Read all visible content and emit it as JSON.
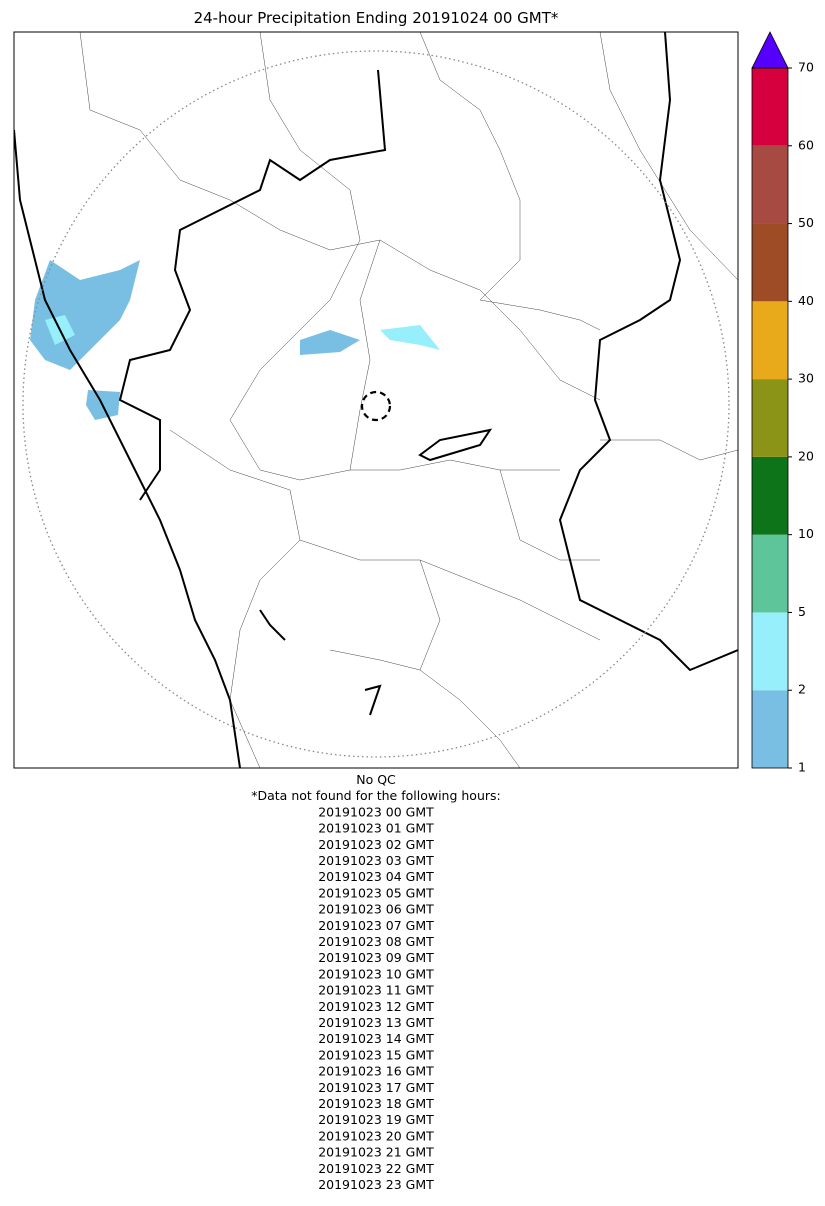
{
  "title": "24-hour Precipitation Ending 20191024 00 GMT*",
  "colorbar": {
    "ticks": [
      1,
      2,
      5,
      10,
      20,
      30,
      40,
      50,
      60,
      70
    ],
    "colors": [
      "#78bfe3",
      "#96effa",
      "#5ec49a",
      "#0d741a",
      "#8c9418",
      "#e8aa1a",
      "#9e4c25",
      "#a64a42",
      "#d6003f"
    ],
    "extend_color": "#5500ff"
  },
  "notes": {
    "qc": "No QC",
    "header": "*Data not found for the following hours:",
    "hours": [
      "20191023 00 GMT",
      "20191023 01 GMT",
      "20191023 02 GMT",
      "20191023 03 GMT",
      "20191023 04 GMT",
      "20191023 05 GMT",
      "20191023 06 GMT",
      "20191023 07 GMT",
      "20191023 08 GMT",
      "20191023 09 GMT",
      "20191023 10 GMT",
      "20191023 11 GMT",
      "20191023 12 GMT",
      "20191023 13 GMT",
      "20191023 14 GMT",
      "20191023 15 GMT",
      "20191023 16 GMT",
      "20191023 17 GMT",
      "20191023 18 GMT",
      "20191023 19 GMT",
      "20191023 20 GMT",
      "20191023 21 GMT",
      "20191023 22 GMT",
      "20191023 23 GMT"
    ]
  }
}
